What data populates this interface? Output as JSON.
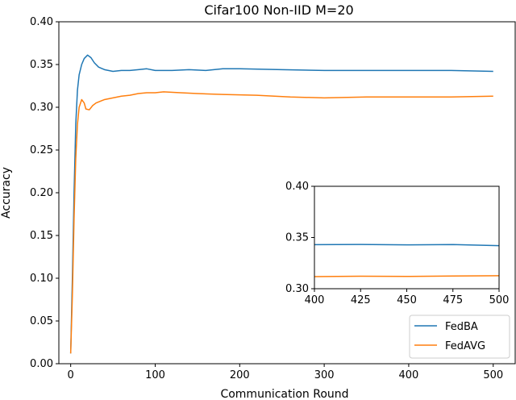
{
  "chart_data": {
    "type": "line",
    "title": "Cifar100 Non-IID M=20",
    "xlabel": "Communication Round",
    "ylabel": "Accuracy",
    "xlim": [
      -14,
      526
    ],
    "ylim": [
      0.0,
      0.4
    ],
    "xticks": [
      "0",
      "100",
      "200",
      "300",
      "400",
      "500"
    ],
    "yticks": [
      "0.00",
      "0.05",
      "0.10",
      "0.15",
      "0.20",
      "0.25",
      "0.30",
      "0.35",
      "0.40"
    ],
    "legend_position": "bottom-right",
    "grid": false,
    "series": [
      {
        "name": "FedBA",
        "color": "#1f77b4",
        "points": [
          [
            0,
            0.012
          ],
          [
            2,
            0.1
          ],
          [
            4,
            0.2
          ],
          [
            6,
            0.28
          ],
          [
            8,
            0.32
          ],
          [
            10,
            0.338
          ],
          [
            13,
            0.35
          ],
          [
            16,
            0.357
          ],
          [
            20,
            0.361
          ],
          [
            24,
            0.358
          ],
          [
            28,
            0.352
          ],
          [
            33,
            0.347
          ],
          [
            40,
            0.344
          ],
          [
            50,
            0.342
          ],
          [
            60,
            0.343
          ],
          [
            70,
            0.343
          ],
          [
            80,
            0.344
          ],
          [
            90,
            0.345
          ],
          [
            100,
            0.343
          ],
          [
            120,
            0.343
          ],
          [
            140,
            0.344
          ],
          [
            160,
            0.343
          ],
          [
            180,
            0.345
          ],
          [
            200,
            0.345
          ],
          [
            250,
            0.344
          ],
          [
            300,
            0.343
          ],
          [
            350,
            0.343
          ],
          [
            400,
            0.343
          ],
          [
            450,
            0.343
          ],
          [
            500,
            0.342
          ]
        ]
      },
      {
        "name": "FedAVG",
        "color": "#ff7f0e",
        "points": [
          [
            0,
            0.012
          ],
          [
            2,
            0.08
          ],
          [
            4,
            0.17
          ],
          [
            6,
            0.24
          ],
          [
            8,
            0.28
          ],
          [
            10,
            0.3
          ],
          [
            13,
            0.309
          ],
          [
            16,
            0.305
          ],
          [
            18,
            0.298
          ],
          [
            22,
            0.297
          ],
          [
            26,
            0.302
          ],
          [
            30,
            0.305
          ],
          [
            40,
            0.309
          ],
          [
            50,
            0.311
          ],
          [
            60,
            0.313
          ],
          [
            70,
            0.314
          ],
          [
            80,
            0.316
          ],
          [
            90,
            0.317
          ],
          [
            100,
            0.317
          ],
          [
            110,
            0.318
          ],
          [
            130,
            0.317
          ],
          [
            150,
            0.316
          ],
          [
            180,
            0.315
          ],
          [
            220,
            0.314
          ],
          [
            260,
            0.312
          ],
          [
            300,
            0.311
          ],
          [
            350,
            0.312
          ],
          [
            400,
            0.312
          ],
          [
            450,
            0.312
          ],
          [
            500,
            0.313
          ]
        ]
      }
    ],
    "inset": {
      "xlim": [
        400,
        500
      ],
      "ylim": [
        0.3,
        0.4
      ],
      "xticks": [
        "400",
        "425",
        "450",
        "475",
        "500"
      ],
      "yticks": [
        "0.30",
        "0.35",
        "0.40"
      ],
      "series": [
        {
          "name": "FedBA",
          "color": "#1f77b4",
          "points": [
            [
              400,
              0.343
            ],
            [
              425,
              0.3432
            ],
            [
              450,
              0.3428
            ],
            [
              475,
              0.3431
            ],
            [
              500,
              0.342
            ]
          ]
        },
        {
          "name": "FedAVG",
          "color": "#ff7f0e",
          "points": [
            [
              400,
              0.3118
            ],
            [
              425,
              0.3122
            ],
            [
              450,
              0.312
            ],
            [
              475,
              0.3124
            ],
            [
              500,
              0.3127
            ]
          ]
        }
      ]
    }
  }
}
